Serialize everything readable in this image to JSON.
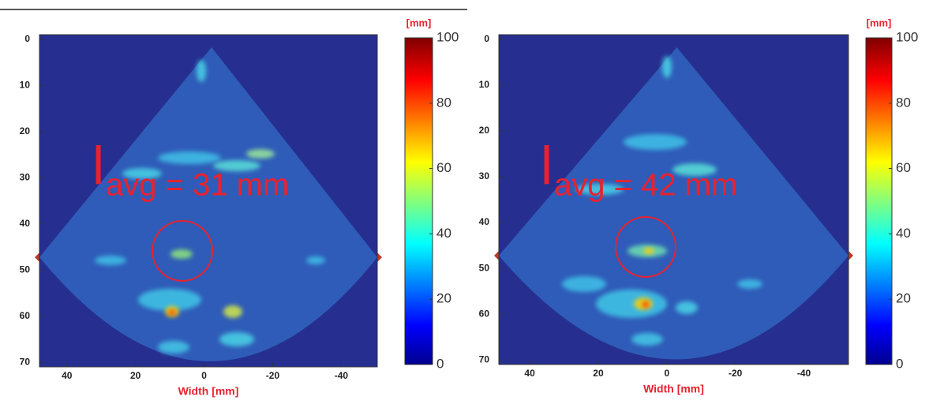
{
  "chart_data": [
    {
      "type": "heatmap",
      "xlabel": "Width [mm]",
      "xlim": [
        48,
        -50.5
      ],
      "xticks": [
        40,
        20,
        0,
        -20,
        -40
      ],
      "ylim": [
        -1,
        71
      ],
      "yticks": [
        0,
        10,
        20,
        30,
        40,
        50,
        60,
        70
      ],
      "colorbar_label": "[mm]",
      "zlim": [
        0,
        100
      ],
      "zticks": [
        0,
        20,
        40,
        60,
        80,
        100
      ],
      "annotation": {
        "symbol": "l",
        "text": "avg = 31 mm"
      }
    },
    {
      "type": "heatmap",
      "xlabel": "Width [mm]",
      "xlim": [
        49,
        -53
      ],
      "xticks": [
        40,
        20,
        0,
        -20,
        -40
      ],
      "ylim": [
        -1,
        71
      ],
      "yticks": [
        0,
        10,
        20,
        30,
        40,
        50,
        60,
        70
      ],
      "colorbar_label": "[mm]",
      "zlim": [
        0,
        100
      ],
      "zticks": [
        0,
        20,
        40,
        60,
        80,
        100
      ],
      "annotation": {
        "symbol": "l",
        "text": "avg = 42 mm"
      }
    }
  ]
}
